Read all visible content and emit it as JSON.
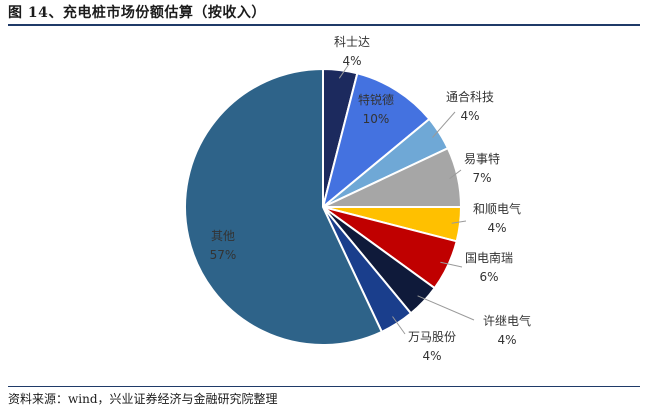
{
  "header": {
    "title": "图 14、充电桩市场份额估算（按收入）"
  },
  "footer": {
    "source": "资料来源：wind，兴业证券经济与金融研究院整理"
  },
  "chart_data": {
    "type": "pie",
    "start_angle_deg": 0,
    "direction": "clockwise",
    "slices": [
      {
        "name": "科士达",
        "value": 4,
        "label": "4%",
        "color": "#1c2a5e",
        "label_pos": "outside"
      },
      {
        "name": "特锐德",
        "value": 10,
        "label": "10%",
        "color": "#4472e0",
        "label_pos": "inside"
      },
      {
        "name": "通合科技",
        "value": 4,
        "label": "4%",
        "color": "#6fa8d6",
        "label_pos": "outside"
      },
      {
        "name": "易事特",
        "value": 7,
        "label": "7%",
        "color": "#a6a6a6",
        "label_pos": "outside"
      },
      {
        "name": "和顺电气",
        "value": 4,
        "label": "4%",
        "color": "#ffc000",
        "label_pos": "outside"
      },
      {
        "name": "国电南瑞",
        "value": 6,
        "label": "6%",
        "color": "#c00000",
        "label_pos": "outside"
      },
      {
        "name": "许继电气",
        "value": 4,
        "label": "4%",
        "color": "#0f1a3a",
        "label_pos": "outside"
      },
      {
        "name": "万马股份",
        "value": 4,
        "label": "4%",
        "color": "#1a3e8c",
        "label_pos": "outside"
      },
      {
        "name": "其他",
        "value": 57,
        "label": "57%",
        "color": "#2e6389",
        "label_pos": "inside"
      }
    ]
  }
}
